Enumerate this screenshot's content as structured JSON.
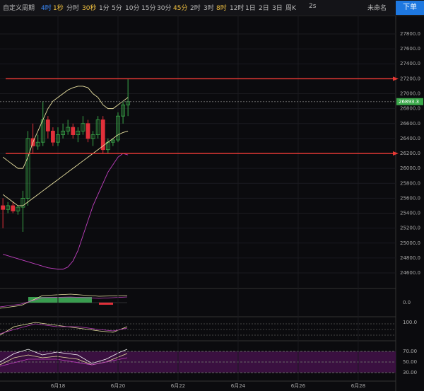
{
  "toolbar": {
    "items": [
      "自定义周期",
      "4时",
      "1秒",
      "分时",
      "30秒",
      "1分",
      "5分",
      "10分",
      "15分",
      "30分",
      "45分",
      "2时",
      "3时",
      "8时",
      "12时",
      "1日",
      "2日",
      "3日",
      "周K",
      "2s"
    ],
    "highlight": [
      1,
      2,
      4,
      10,
      13
    ],
    "active": 1,
    "account": "未命名",
    "order_button": "下单"
  },
  "chart_data": {
    "type": "candlestick",
    "x": [
      16.167,
      16.333,
      16.5,
      16.667,
      16.833,
      17.0,
      17.167,
      17.333,
      17.5,
      17.667,
      17.833,
      18.0,
      18.167,
      18.333,
      18.5,
      18.667,
      18.833,
      19.0,
      19.167,
      19.333,
      19.5,
      19.667,
      19.833,
      20.0,
      20.167,
      20.333
    ],
    "open": [
      25500,
      25450,
      25500,
      25430,
      25480,
      25600,
      26400,
      26300,
      26350,
      26650,
      26500,
      26350,
      26450,
      26500,
      26550,
      26450,
      26500,
      26600,
      26400,
      26450,
      26650,
      26250,
      26350,
      26380,
      26700,
      26850
    ],
    "high": [
      25600,
      25550,
      25550,
      25500,
      25700,
      26500,
      26600,
      26450,
      26900,
      26700,
      26550,
      26550,
      26600,
      26650,
      26600,
      26550,
      26700,
      26650,
      26500,
      26700,
      26700,
      26400,
      26400,
      26750,
      26900,
      27200
    ],
    "low": [
      25200,
      25400,
      25400,
      25380,
      25150,
      25500,
      26200,
      26250,
      26300,
      26400,
      26300,
      26300,
      26400,
      26450,
      26400,
      26350,
      26450,
      26350,
      26300,
      26400,
      26200,
      26200,
      26300,
      26350,
      26600,
      26700
    ],
    "close": [
      25450,
      25500,
      25430,
      25480,
      25600,
      26400,
      26300,
      26350,
      26650,
      26500,
      26350,
      26450,
      26500,
      26550,
      26450,
      26500,
      26600,
      26400,
      26450,
      26650,
      26250,
      26350,
      26380,
      26700,
      26850,
      26893.3
    ],
    "up_color": "#3aa84a",
    "down_color": "#e0303a",
    "series": [
      {
        "color": "#e8e0a0",
        "values": [
          26150,
          26100,
          26050,
          26000,
          26000,
          26150,
          26350,
          26500,
          26650,
          26800,
          26900,
          26950,
          27000,
          27050,
          27080,
          27100,
          27100,
          27080,
          27000,
          26950,
          26850,
          26800,
          26800,
          26850,
          26900,
          26950
        ]
      },
      {
        "color": "#e8e0a0",
        "values": [
          25650,
          25600,
          25550,
          25500,
          25500,
          25550,
          25600,
          25650,
          25700,
          25750,
          25800,
          25850,
          25900,
          25950,
          26000,
          26050,
          26100,
          26150,
          26200,
          26250,
          26300,
          26350,
          26400,
          26450,
          26480,
          26500
        ]
      },
      {
        "color": "#c040c0",
        "values": [
          24850,
          24830,
          24810,
          24790,
          24770,
          24750,
          24730,
          24710,
          24690,
          24670,
          24660,
          24650,
          24650,
          24680,
          24760,
          24900,
          25100,
          25300,
          25500,
          25650,
          25800,
          25950,
          26050,
          26150,
          26200,
          26180
        ]
      }
    ],
    "hlines": [
      {
        "value": 27200,
        "color": "#e53935"
      },
      {
        "value": 26200,
        "color": "#e53935"
      }
    ],
    "last": {
      "value": 26893.3,
      "label": "26893.3",
      "color": "#3aa84a"
    },
    "xlim": [
      16.07,
      29.25
    ],
    "ylim": [
      24392,
      28046
    ],
    "xticks": [
      {
        "value": 18,
        "label": "6月18"
      },
      {
        "value": 20,
        "label": "6月20"
      },
      {
        "value": 22,
        "label": "6月22"
      },
      {
        "value": 24,
        "label": "6月24"
      },
      {
        "value": 26,
        "label": "6月26"
      },
      {
        "value": 28,
        "label": "6月28"
      }
    ],
    "yticks": [
      {
        "value": 27800,
        "label": "27800.0"
      },
      {
        "value": 27600,
        "label": "27600.0"
      },
      {
        "value": 27400,
        "label": "27400.0"
      },
      {
        "value": 27200,
        "label": "27200.0"
      },
      {
        "value": 27000,
        "label": "27000.0"
      },
      {
        "value": 26800,
        "label": "26800.0"
      },
      {
        "value": 26600,
        "label": "26600.0"
      },
      {
        "value": 26400,
        "label": "26400.0"
      },
      {
        "value": 26200,
        "label": "26200.0"
      },
      {
        "value": 26000,
        "label": "26000.0"
      },
      {
        "value": 25800,
        "label": "25800.0"
      },
      {
        "value": 25600,
        "label": "25600.0"
      },
      {
        "value": 25400,
        "label": "25400.0"
      },
      {
        "value": 25200,
        "label": "25200.0"
      },
      {
        "value": 25000,
        "label": "25000.0"
      },
      {
        "value": 24800,
        "label": "24800.0"
      },
      {
        "value": 24600,
        "label": "24600.0"
      }
    ],
    "subpanel_labels": [
      "0.0",
      "100.0",
      "70.00",
      "50.00",
      "30.00"
    ]
  }
}
